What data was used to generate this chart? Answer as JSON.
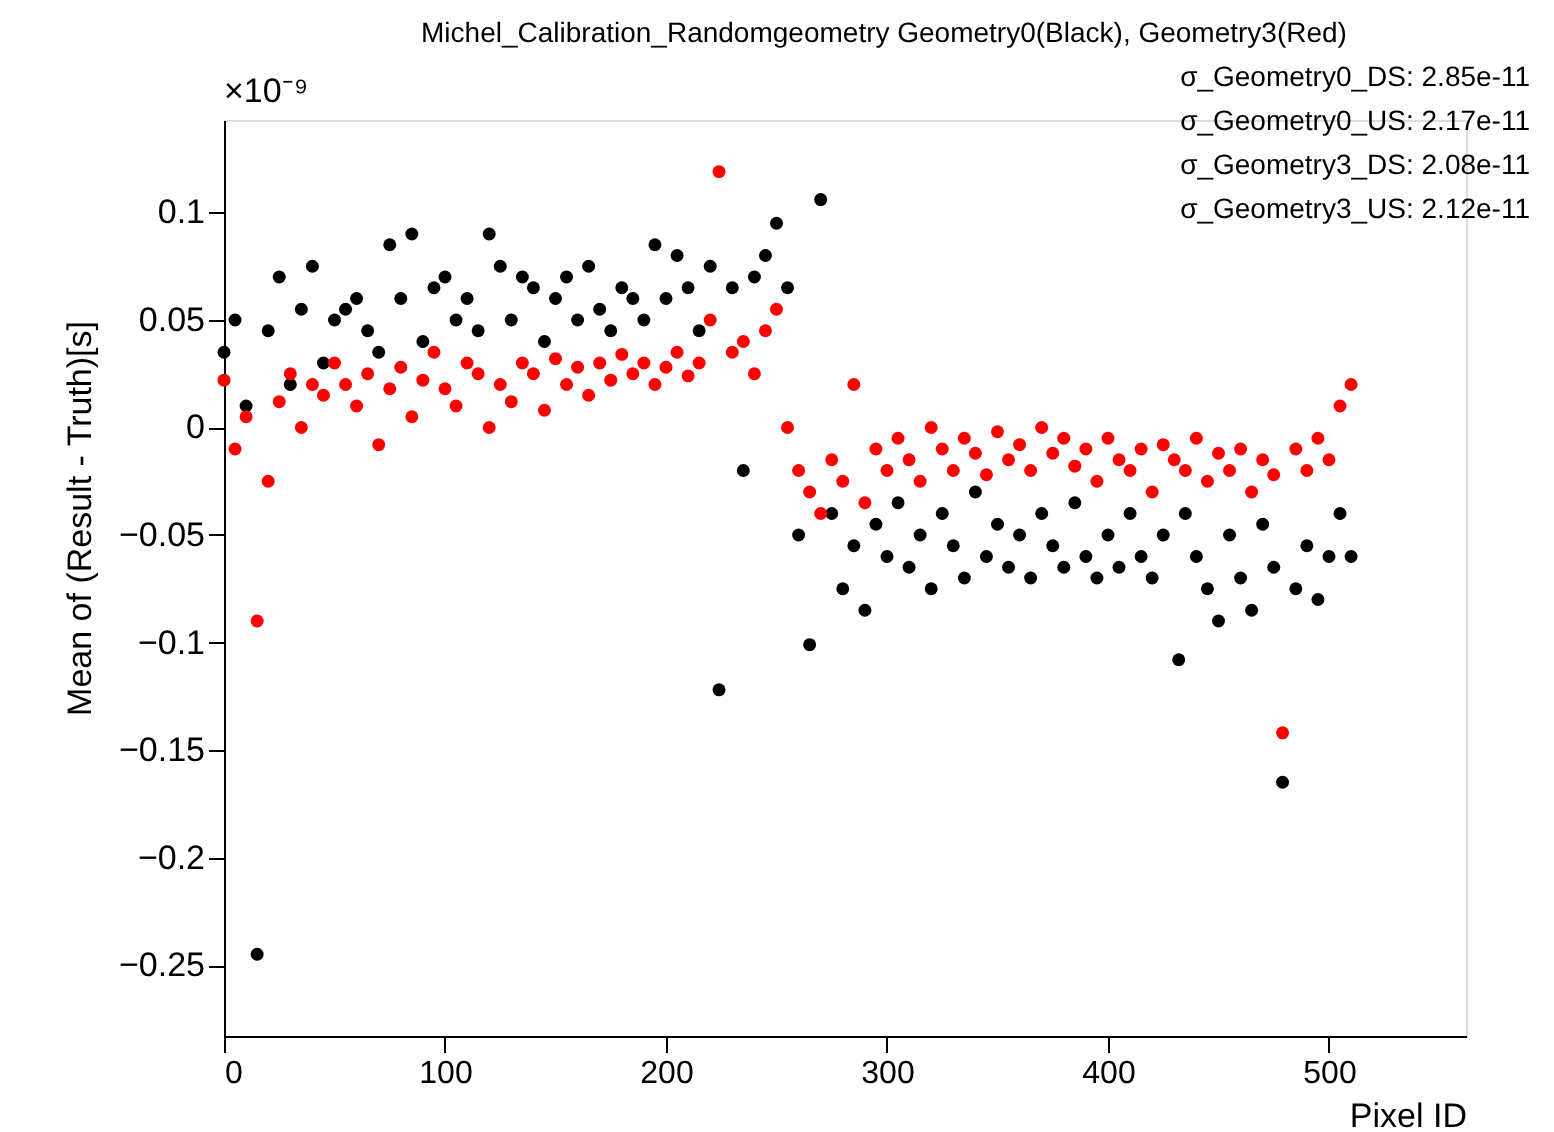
{
  "chart_data": {
    "type": "scatter",
    "title": "Michel_Calibration_Randomgeometry Geometry0(Black), Geometry3(Red)",
    "xlabel": "Pixel ID",
    "ylabel": "Mean of (Result - Truth)[s]",
    "annotations": [
      "×10⁻⁹",
      "σ_Geometry0_DS: 2.85e-11",
      "σ_Geometry0_US: 2.17e-11",
      "σ_Geometry3_DS: 2.08e-11",
      "σ_Geometry3_US: 2.12e-11"
    ],
    "xlim": [
      0,
      562
    ],
    "xticks": [
      0,
      100,
      200,
      300,
      400,
      500
    ],
    "ylim": [
      -0.283,
      0.143
    ],
    "yticks": [
      -0.25,
      -0.2,
      -0.15,
      -0.1,
      -0.05,
      0,
      0.05,
      0.1
    ],
    "grid": false,
    "legend": false,
    "marker": "circle",
    "series": [
      {
        "color": "#000000",
        "x": [
          0,
          5,
          10,
          15,
          20,
          25,
          30,
          35,
          40,
          45,
          50,
          55,
          60,
          65,
          70,
          75,
          80,
          85,
          90,
          95,
          100,
          105,
          110,
          115,
          120,
          125,
          130,
          135,
          140,
          145,
          150,
          155,
          160,
          165,
          170,
          175,
          180,
          185,
          190,
          195,
          200,
          205,
          210,
          215,
          220,
          224,
          230,
          235,
          240,
          245,
          250,
          255,
          260,
          265,
          270,
          275,
          280,
          285,
          290,
          295,
          300,
          305,
          310,
          315,
          320,
          325,
          330,
          335,
          340,
          345,
          350,
          355,
          360,
          365,
          370,
          375,
          380,
          385,
          390,
          395,
          400,
          405,
          410,
          415,
          420,
          425,
          432,
          435,
          440,
          445,
          450,
          455,
          460,
          465,
          470,
          475,
          479,
          485,
          490,
          495,
          500,
          505,
          510
        ],
        "values": [
          0.035,
          0.05,
          0.01,
          -0.245,
          0.045,
          0.07,
          0.02,
          0.055,
          0.075,
          0.03,
          0.05,
          0.055,
          0.06,
          0.045,
          0.035,
          0.085,
          0.06,
          0.09,
          0.04,
          0.065,
          0.07,
          0.05,
          0.06,
          0.045,
          0.09,
          0.075,
          0.05,
          0.07,
          0.065,
          0.04,
          0.06,
          0.07,
          0.05,
          0.075,
          0.055,
          0.045,
          0.065,
          0.06,
          0.05,
          0.085,
          0.06,
          0.08,
          0.065,
          0.045,
          0.075,
          -0.122,
          0.065,
          -0.02,
          0.07,
          0.08,
          0.095,
          0.065,
          -0.05,
          -0.101,
          0.106,
          -0.04,
          -0.075,
          -0.055,
          -0.085,
          -0.045,
          -0.06,
          -0.035,
          -0.065,
          -0.05,
          -0.075,
          -0.04,
          -0.055,
          -0.07,
          -0.03,
          -0.06,
          -0.045,
          -0.065,
          -0.05,
          -0.07,
          -0.04,
          -0.055,
          -0.065,
          -0.035,
          -0.06,
          -0.07,
          -0.05,
          -0.065,
          -0.04,
          -0.06,
          -0.07,
          -0.05,
          -0.108,
          -0.04,
          -0.06,
          -0.075,
          -0.09,
          -0.05,
          -0.07,
          -0.085,
          -0.045,
          -0.065,
          -0.165,
          -0.075,
          -0.055,
          -0.08,
          -0.06,
          -0.04,
          -0.06
        ]
      },
      {
        "color": "#ff0000",
        "x": [
          0,
          5,
          10,
          15,
          20,
          25,
          30,
          35,
          40,
          45,
          50,
          55,
          60,
          65,
          70,
          75,
          80,
          85,
          90,
          95,
          100,
          105,
          110,
          115,
          120,
          125,
          130,
          135,
          140,
          145,
          150,
          155,
          160,
          165,
          170,
          175,
          180,
          185,
          190,
          195,
          200,
          205,
          210,
          215,
          220,
          224,
          230,
          235,
          240,
          245,
          250,
          255,
          260,
          265,
          270,
          275,
          280,
          285,
          290,
          295,
          300,
          305,
          310,
          315,
          320,
          325,
          330,
          335,
          340,
          345,
          350,
          355,
          360,
          365,
          370,
          375,
          380,
          385,
          390,
          395,
          400,
          405,
          410,
          415,
          420,
          425,
          430,
          435,
          440,
          445,
          450,
          455,
          460,
          465,
          470,
          475,
          479,
          485,
          490,
          495,
          500,
          505,
          510
        ],
        "values": [
          0.022,
          -0.01,
          0.005,
          -0.09,
          -0.025,
          0.012,
          0.025,
          0.0,
          0.02,
          0.015,
          0.03,
          0.02,
          0.01,
          0.025,
          -0.008,
          0.018,
          0.028,
          0.005,
          0.022,
          0.035,
          0.018,
          0.01,
          0.03,
          0.025,
          0.0,
          0.02,
          0.012,
          0.03,
          0.025,
          0.008,
          0.032,
          0.02,
          0.028,
          0.015,
          0.03,
          0.022,
          0.034,
          0.025,
          0.03,
          0.02,
          0.028,
          0.035,
          0.024,
          0.03,
          0.05,
          0.119,
          0.035,
          0.04,
          0.025,
          0.045,
          0.055,
          0.0,
          -0.02,
          -0.03,
          -0.04,
          -0.015,
          -0.025,
          0.02,
          -0.035,
          -0.01,
          -0.02,
          -0.005,
          -0.015,
          -0.025,
          0.0,
          -0.01,
          -0.02,
          -0.005,
          -0.012,
          -0.022,
          -0.002,
          -0.015,
          -0.008,
          -0.02,
          0.0,
          -0.012,
          -0.005,
          -0.018,
          -0.01,
          -0.025,
          -0.005,
          -0.015,
          -0.02,
          -0.01,
          -0.03,
          -0.008,
          -0.015,
          -0.02,
          -0.005,
          -0.025,
          -0.012,
          -0.02,
          -0.01,
          -0.03,
          -0.015,
          -0.022,
          -0.142,
          -0.01,
          -0.02,
          -0.005,
          -0.015,
          0.01,
          0.02
        ]
      }
    ]
  }
}
